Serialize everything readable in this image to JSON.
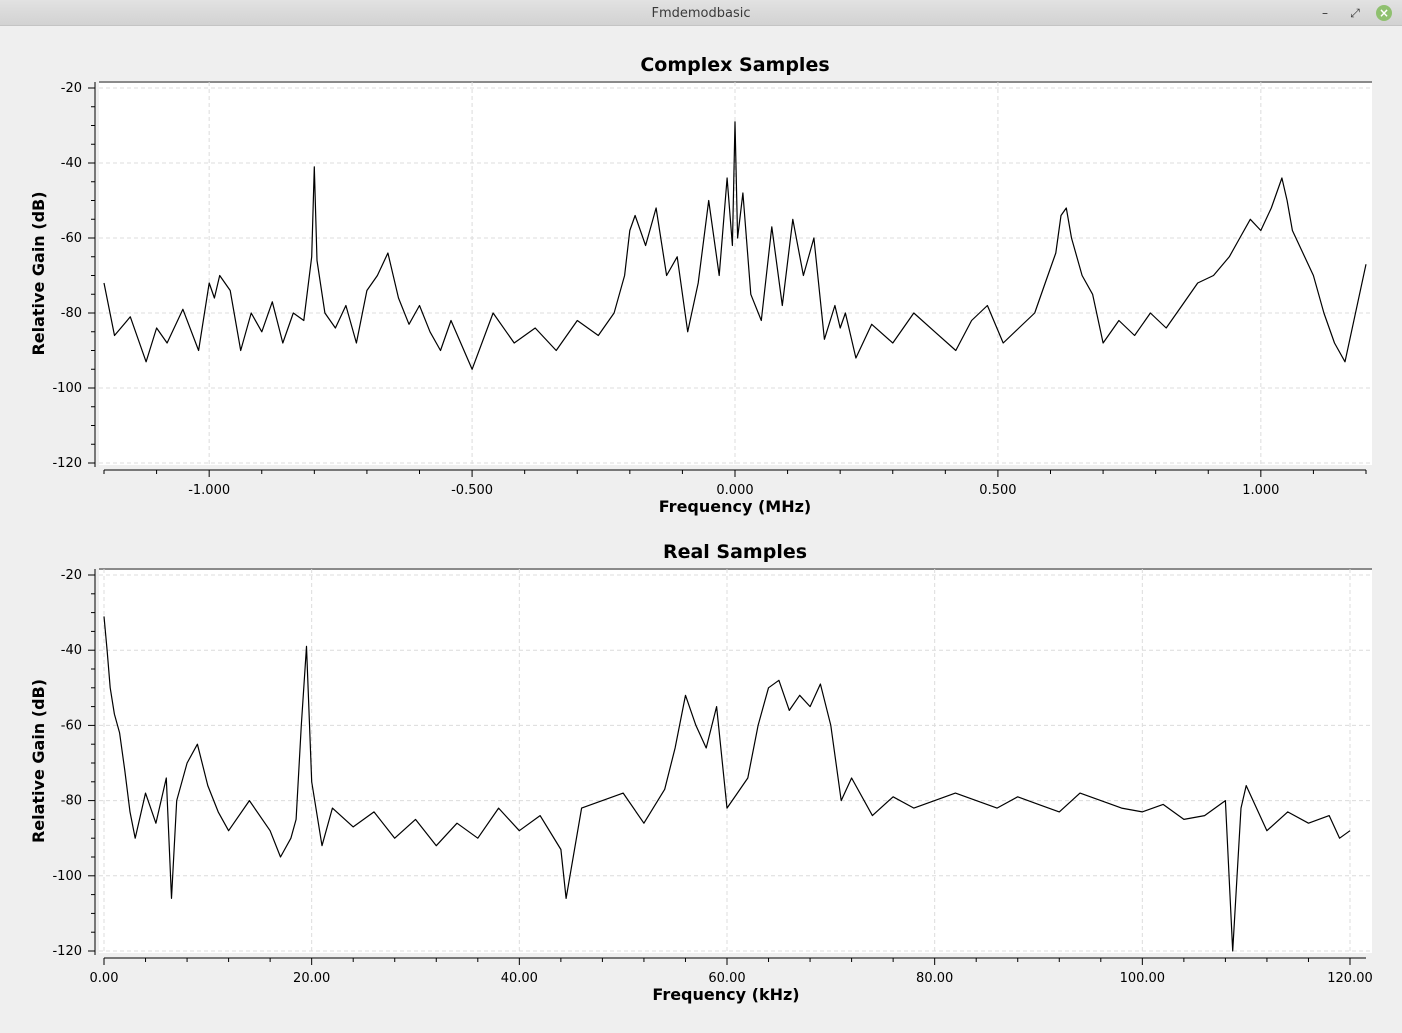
{
  "window": {
    "title": "Fmdemodbasic",
    "minimize_icon": "minimize-icon",
    "maximize_icon": "maximize-icon",
    "close_icon": "close-icon",
    "close_color": "#8fc06f"
  },
  "chart_data": [
    {
      "type": "line",
      "title": "Complex Samples",
      "xlabel": "Frequency (MHz)",
      "ylabel": "Relative Gain (dB)",
      "xlim": [
        -1.2,
        1.2
      ],
      "ylim": [
        -120,
        -20
      ],
      "xticks": [
        -1.0,
        -0.5,
        0.0,
        0.5,
        1.0
      ],
      "xtick_labels": [
        "-1.000",
        "-0.500",
        "0.000",
        "0.500",
        "1.000"
      ],
      "yticks": [
        -20,
        -40,
        -60,
        -80,
        -100,
        -120
      ],
      "ytick_labels": [
        "-20",
        "-40",
        "-60",
        "-80",
        "-100",
        "-120"
      ],
      "grid": true,
      "line_color": "#000000",
      "series": [
        {
          "x": [
            -1.2,
            -1.18,
            -1.15,
            -1.12,
            -1.1,
            -1.08,
            -1.05,
            -1.02,
            -1.0,
            -0.99,
            -0.98,
            -0.96,
            -0.94,
            -0.92,
            -0.9,
            -0.88,
            -0.86,
            -0.84,
            -0.82,
            -0.805,
            -0.8,
            -0.795,
            -0.78,
            -0.76,
            -0.74,
            -0.72,
            -0.7,
            -0.68,
            -0.66,
            -0.64,
            -0.62,
            -0.6,
            -0.58,
            -0.56,
            -0.54,
            -0.5,
            -0.46,
            -0.42,
            -0.38,
            -0.34,
            -0.3,
            -0.26,
            -0.23,
            -0.21,
            -0.2,
            -0.19,
            -0.17,
            -0.15,
            -0.13,
            -0.11,
            -0.09,
            -0.07,
            -0.05,
            -0.03,
            -0.015,
            -0.005,
            0.0,
            0.005,
            0.015,
            0.03,
            0.05,
            0.07,
            0.09,
            0.11,
            0.13,
            0.15,
            0.17,
            0.19,
            0.2,
            0.21,
            0.23,
            0.26,
            0.3,
            0.34,
            0.38,
            0.42,
            0.45,
            0.48,
            0.51,
            0.54,
            0.57,
            0.59,
            0.6,
            0.61,
            0.62,
            0.63,
            0.64,
            0.66,
            0.68,
            0.7,
            0.73,
            0.76,
            0.79,
            0.82,
            0.85,
            0.88,
            0.91,
            0.94,
            0.96,
            0.98,
            1.0,
            1.02,
            1.04,
            1.05,
            1.06,
            1.08,
            1.1,
            1.12,
            1.14,
            1.16,
            1.18,
            1.2
          ],
          "y": [
            -72,
            -86,
            -81,
            -93,
            -84,
            -88,
            -79,
            -90,
            -72,
            -76,
            -70,
            -74,
            -90,
            -80,
            -85,
            -77,
            -88,
            -80,
            -82,
            -65,
            -41,
            -66,
            -80,
            -84,
            -78,
            -88,
            -74,
            -70,
            -64,
            -76,
            -83,
            -78,
            -85,
            -90,
            -82,
            -95,
            -80,
            -88,
            -84,
            -90,
            -82,
            -86,
            -80,
            -70,
            -58,
            -54,
            -62,
            -52,
            -70,
            -65,
            -85,
            -72,
            -50,
            -70,
            -44,
            -62,
            -29,
            -60,
            -48,
            -75,
            -82,
            -57,
            -78,
            -55,
            -70,
            -60,
            -87,
            -78,
            -84,
            -80,
            -92,
            -83,
            -88,
            -80,
            -85,
            -90,
            -82,
            -78,
            -88,
            -84,
            -80,
            -72,
            -68,
            -64,
            -54,
            -52,
            -60,
            -70,
            -75,
            -88,
            -82,
            -86,
            -80,
            -84,
            -78,
            -72,
            -70,
            -65,
            -60,
            -55,
            -58,
            -52,
            -44,
            -50,
            -58,
            -64,
            -70,
            -80,
            -88,
            -93,
            -80,
            -67
          ]
        }
      ]
    },
    {
      "type": "line",
      "title": "Real Samples",
      "xlabel": "Frequency (kHz)",
      "ylabel": "Relative Gain (dB)",
      "xlim": [
        0,
        120
      ],
      "ylim": [
        -120,
        -20
      ],
      "xticks": [
        0,
        20,
        40,
        60,
        80,
        100,
        120
      ],
      "xtick_labels": [
        "0.00",
        "20.00",
        "40.00",
        "60.00",
        "80.00",
        "100.00",
        "120.00"
      ],
      "yticks": [
        -20,
        -40,
        -60,
        -80,
        -100,
        -120
      ],
      "ytick_labels": [
        "-20",
        "-40",
        "-60",
        "-80",
        "-100",
        "-120"
      ],
      "grid": true,
      "line_color": "#000000",
      "series": [
        {
          "x": [
            0.0,
            0.3,
            0.6,
            1.0,
            1.5,
            2.0,
            2.5,
            3.0,
            4.0,
            5.0,
            6.0,
            6.5,
            7.0,
            8.0,
            9.0,
            10.0,
            11.0,
            12.0,
            14.0,
            16.0,
            17.0,
            18.0,
            18.5,
            19.0,
            19.5,
            20.0,
            21.0,
            22.0,
            24.0,
            26.0,
            28.0,
            30.0,
            32.0,
            34.0,
            36.0,
            38.0,
            40.0,
            42.0,
            44.0,
            44.5,
            46.0,
            48.0,
            50.0,
            52.0,
            54.0,
            55.0,
            56.0,
            57.0,
            58.0,
            59.0,
            60.0,
            61.0,
            62.0,
            63.0,
            64.0,
            65.0,
            66.0,
            67.0,
            68.0,
            69.0,
            70.0,
            71.0,
            72.0,
            74.0,
            76.0,
            78.0,
            80.0,
            82.0,
            84.0,
            86.0,
            88.0,
            90.0,
            92.0,
            94.0,
            96.0,
            98.0,
            100.0,
            102.0,
            104.0,
            106.0,
            108.0,
            108.7,
            109.5,
            110.0,
            112.0,
            114.0,
            116.0,
            118.0,
            119.0,
            120.0
          ],
          "y": [
            -31,
            -40,
            -50,
            -57,
            -62,
            -72,
            -83,
            -90,
            -78,
            -86,
            -74,
            -106,
            -80,
            -70,
            -65,
            -76,
            -83,
            -88,
            -80,
            -88,
            -95,
            -90,
            -85,
            -60,
            -39,
            -75,
            -92,
            -82,
            -87,
            -83,
            -90,
            -85,
            -92,
            -86,
            -90,
            -82,
            -88,
            -84,
            -93,
            -106,
            -82,
            -80,
            -78,
            -86,
            -77,
            -66,
            -52,
            -60,
            -66,
            -55,
            -82,
            -78,
            -74,
            -60,
            -50,
            -48,
            -56,
            -52,
            -55,
            -49,
            -60,
            -80,
            -74,
            -84,
            -79,
            -82,
            -80,
            -78,
            -80,
            -82,
            -79,
            -81,
            -83,
            -78,
            -80,
            -82,
            -83,
            -81,
            -85,
            -84,
            -80,
            -120,
            -82,
            -76,
            -88,
            -83,
            -86,
            -84,
            -90,
            -88
          ]
        }
      ]
    }
  ]
}
